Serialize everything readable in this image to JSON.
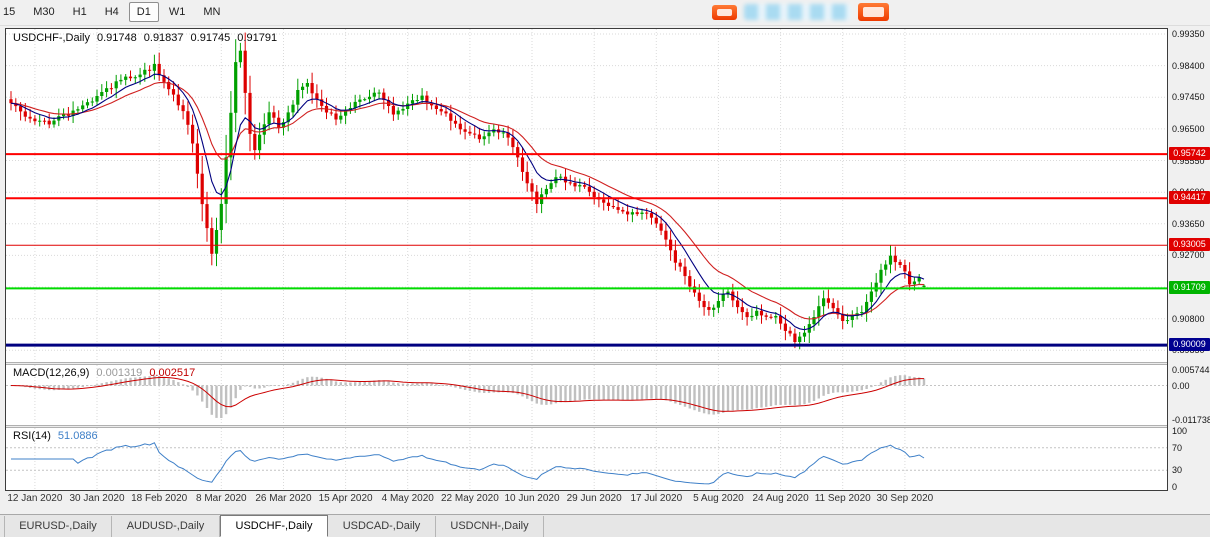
{
  "toolbar": {
    "timeframes": [
      "15",
      "M30",
      "H1",
      "H4",
      "D1",
      "W1",
      "MN"
    ],
    "active_timeframe": "D1"
  },
  "chart": {
    "symbol_label": "USDCHF-,Daily",
    "ohlc": {
      "open": "0.91748",
      "high": "0.91837",
      "low": "0.91745",
      "close": "0.91791"
    }
  },
  "price_axis": {
    "labels": [
      "0.99350",
      "0.98400",
      "0.97450",
      "0.96500",
      "0.95550",
      "0.94600",
      "0.93650",
      "0.92700",
      "0.91750",
      "0.90800",
      "0.89850"
    ]
  },
  "macd": {
    "label": "MACD(12,26,9)",
    "value1": "0.001319",
    "value2": "0.002517",
    "axis": [
      "0.005744",
      "0.00",
      "-0.011738"
    ]
  },
  "rsi": {
    "label": "RSI(14)",
    "value": "51.0886",
    "axis": [
      "100",
      "70",
      "30",
      "0"
    ]
  },
  "tabs": [
    {
      "label": "EURUSD-,Daily",
      "active": false
    },
    {
      "label": "AUDUSD-,Daily",
      "active": false
    },
    {
      "label": "USDCHF-,Daily",
      "active": true
    },
    {
      "label": "USDCAD-,Daily",
      "active": false
    },
    {
      "label": "USDCNH-,Daily",
      "active": false
    }
  ],
  "chart_data": {
    "type": "candlestick",
    "title": "USDCHF-,Daily",
    "n_candles": 192,
    "x_axis": {
      "labels": [
        "12 Jan 2020",
        "30 Jan 2020",
        "18 Feb 2020",
        "8 Mar 2020",
        "26 Mar 2020",
        "15 Apr 2020",
        "4 May 2020",
        "22 May 2020",
        "10 Jun 2020",
        "29 Jun 2020",
        "17 Jul 2020",
        "5 Aug 2020",
        "24 Aug 2020",
        "11 Sep 2020",
        "30 Sep 2020"
      ],
      "label_indices": [
        5,
        18,
        31,
        44,
        57,
        70,
        83,
        96,
        109,
        122,
        135,
        148,
        161,
        174,
        187
      ]
    },
    "y_axis": {
      "top_price": 0.995,
      "bottom_price": 0.895
    },
    "close_anchors": [
      [
        0,
        0.9725
      ],
      [
        4,
        0.968
      ],
      [
        8,
        0.9665
      ],
      [
        13,
        0.9705
      ],
      [
        18,
        0.9745
      ],
      [
        23,
        0.98
      ],
      [
        27,
        0.9815
      ],
      [
        30,
        0.984
      ],
      [
        33,
        0.9775
      ],
      [
        36,
        0.97
      ],
      [
        38,
        0.961
      ],
      [
        40,
        0.942
      ],
      [
        42,
        0.928
      ],
      [
        43,
        0.935
      ],
      [
        44,
        0.942
      ],
      [
        45,
        0.956
      ],
      [
        46,
        0.97
      ],
      [
        47,
        0.985
      ],
      [
        48,
        0.988
      ],
      [
        49,
        0.976
      ],
      [
        50,
        0.964
      ],
      [
        51,
        0.958
      ],
      [
        52,
        0.9625
      ],
      [
        54,
        0.97
      ],
      [
        56,
        0.9655
      ],
      [
        58,
        0.97
      ],
      [
        60,
        0.976
      ],
      [
        62,
        0.978
      ],
      [
        64,
        0.9745
      ],
      [
        66,
        0.97
      ],
      [
        68,
        0.968
      ],
      [
        71,
        0.972
      ],
      [
        74,
        0.9745
      ],
      [
        77,
        0.976
      ],
      [
        80,
        0.97
      ],
      [
        83,
        0.9725
      ],
      [
        86,
        0.9745
      ],
      [
        89,
        0.971
      ],
      [
        92,
        0.968
      ],
      [
        95,
        0.964
      ],
      [
        98,
        0.9625
      ],
      [
        101,
        0.965
      ],
      [
        104,
        0.963
      ],
      [
        106,
        0.956
      ],
      [
        108,
        0.948
      ],
      [
        110,
        0.943
      ],
      [
        112,
        0.9475
      ],
      [
        114,
        0.951
      ],
      [
        117,
        0.949
      ],
      [
        120,
        0.947
      ],
      [
        123,
        0.9435
      ],
      [
        126,
        0.941
      ],
      [
        129,
        0.9395
      ],
      [
        132,
        0.9405
      ],
      [
        134,
        0.938
      ],
      [
        136,
        0.934
      ],
      [
        138,
        0.928
      ],
      [
        140,
        0.923
      ],
      [
        142,
        0.918
      ],
      [
        144,
        0.914
      ],
      [
        146,
        0.9105
      ],
      [
        148,
        0.9135
      ],
      [
        150,
        0.9155
      ],
      [
        152,
        0.9115
      ],
      [
        154,
        0.9085
      ],
      [
        156,
        0.9105
      ],
      [
        158,
        0.9085
      ],
      [
        160,
        0.9095
      ],
      [
        162,
        0.905
      ],
      [
        164,
        0.9008
      ],
      [
        166,
        0.904
      ],
      [
        168,
        0.9085
      ],
      [
        170,
        0.9135
      ],
      [
        172,
        0.911
      ],
      [
        174,
        0.9075
      ],
      [
        176,
        0.9085
      ],
      [
        178,
        0.9105
      ],
      [
        180,
        0.916
      ],
      [
        182,
        0.922
      ],
      [
        184,
        0.9268
      ],
      [
        186,
        0.924
      ],
      [
        188,
        0.919
      ],
      [
        190,
        0.9205
      ],
      [
        191,
        0.9179
      ]
    ],
    "last_ohlc": {
      "open": 0.91748,
      "high": 0.91837,
      "low": 0.91745,
      "close": 0.91791
    },
    "hlines": [
      {
        "price": 0.95742,
        "label": "0.95742",
        "color": "#ff0000",
        "flag": "#e00000",
        "width": 2
      },
      {
        "price": 0.94417,
        "label": "0.94417",
        "color": "#ff0000",
        "flag": "#e00000",
        "width": 2
      },
      {
        "price": 0.93005,
        "label": "0.93005",
        "color": "#e00000",
        "flag": "#e00000",
        "width": 1
      },
      {
        "price": 0.91709,
        "label": "0.91709",
        "color": "#00dc00",
        "flag": "#00b400",
        "width": 2
      },
      {
        "price": 0.90009,
        "label": "0.90009",
        "color": "#000080",
        "flag": "#000090",
        "width": 3
      }
    ],
    "indicators": {
      "ma_fast": {
        "period": 8,
        "color": "#000080"
      },
      "ma_slow": {
        "period": 17,
        "color": "#d02020"
      },
      "macd": {
        "params": [
          12,
          26,
          9
        ],
        "current": [
          0.001319,
          0.002517
        ],
        "range": [
          -0.0125,
          0.0065
        ]
      },
      "rsi": {
        "period": 14,
        "current": 51.0886,
        "levels": [
          70,
          30
        ],
        "range": [
          0,
          100
        ]
      }
    },
    "colors": {
      "candle_up": "#00a000",
      "candle_down": "#dd0000",
      "macd_hist": "#c0c0c0",
      "macd_signal": "#cc0000",
      "rsi": "#3f80c8",
      "grid": "#dadada",
      "background": "#ffffff",
      "chrome": "#f0f0f0"
    }
  }
}
